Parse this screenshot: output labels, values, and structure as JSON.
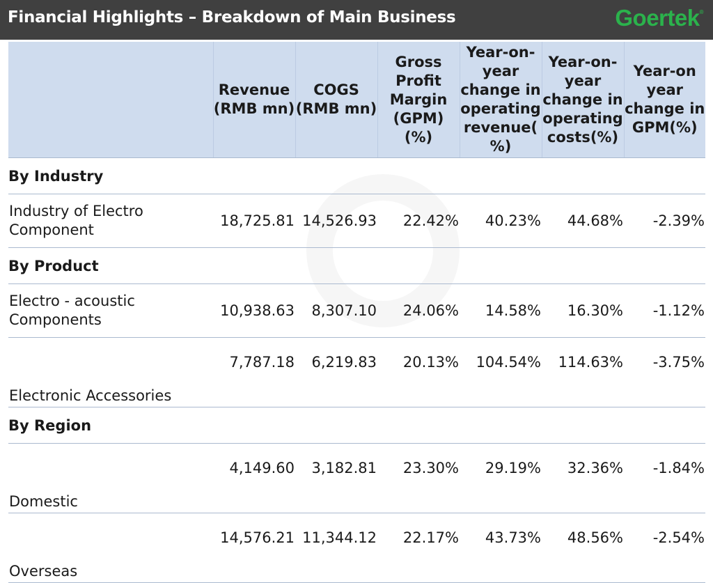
{
  "header": {
    "title": "Financial Highlights – Breakdown of Main Business",
    "logo_text": "Goertek",
    "logo_mark": "®",
    "logo_color": "#2bb24c",
    "bar_color": "#404040"
  },
  "table": {
    "columns": [
      "",
      "Revenue (RMB mn)",
      "COGS (RMB mn)",
      "Gross Profit Margin (GPM) (%)",
      "Year-on-year change in operating revenue( %)",
      "Year-on-year change in operating costs(%)",
      "Year-on year change in GPM(%)"
    ],
    "header_bg": "#cfdcee",
    "sections": [
      {
        "title": "By Industry",
        "rows": [
          {
            "label": "Industry of Electro Component",
            "values": [
              "18,725.81",
              "14,526.93",
              "22.42%",
              "40.23%",
              "44.68%",
              "-2.39%"
            ]
          }
        ]
      },
      {
        "title": "By Product",
        "rows": [
          {
            "label": "Electro - acoustic Components",
            "values": [
              "10,938.63",
              "8,307.10",
              "24.06%",
              "14.58%",
              "16.30%",
              "-1.12%"
            ]
          },
          {
            "label": "Electronic Accessories",
            "values": [
              "7,787.18",
              "6,219.83",
              "20.13%",
              "104.54%",
              "114.63%",
              "-3.75%"
            ]
          }
        ]
      },
      {
        "title": "By Region",
        "rows": [
          {
            "label": "Domestic",
            "values": [
              "4,149.60",
              "3,182.81",
              "23.30%",
              "29.19%",
              "32.36%",
              "-1.84%"
            ]
          },
          {
            "label": "Overseas",
            "values": [
              "14,576.21",
              "11,344.12",
              "22.17%",
              "43.73%",
              "48.56%",
              "-2.54%"
            ]
          }
        ]
      }
    ]
  }
}
